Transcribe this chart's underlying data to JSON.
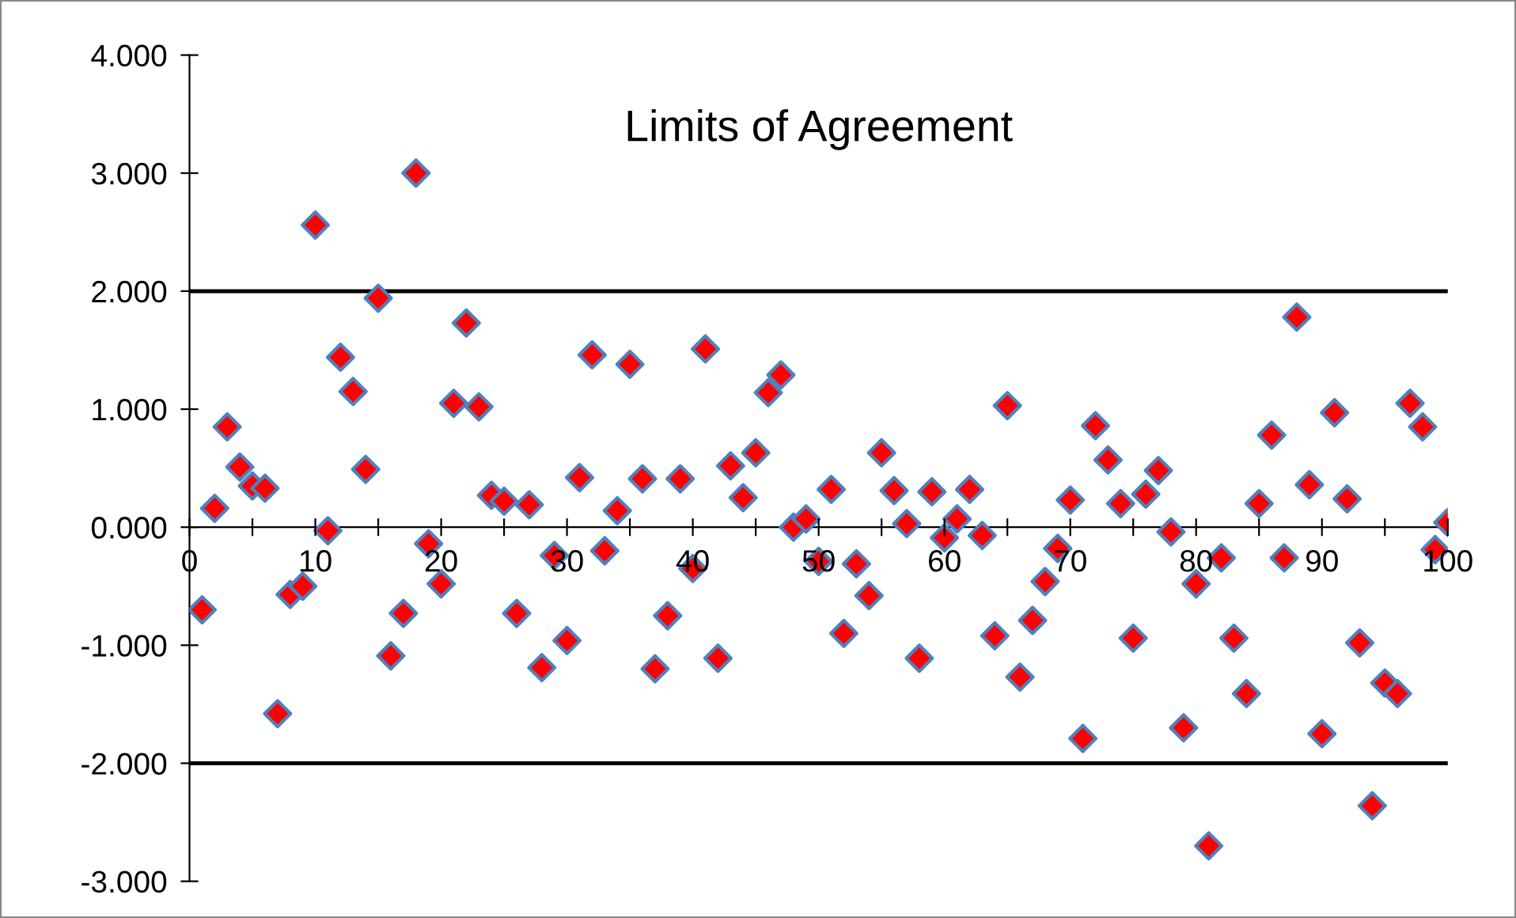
{
  "chart_data": {
    "type": "scatter",
    "title": "Limits of Agreement",
    "x": [
      1,
      2,
      3,
      4,
      5,
      6,
      7,
      8,
      9,
      10,
      11,
      12,
      13,
      14,
      15,
      16,
      17,
      18,
      19,
      20,
      21,
      22,
      23,
      24,
      25,
      26,
      27,
      28,
      29,
      30,
      31,
      32,
      33,
      34,
      35,
      36,
      37,
      38,
      39,
      40,
      41,
      42,
      43,
      44,
      45,
      46,
      47,
      48,
      49,
      50,
      51,
      52,
      53,
      54,
      55,
      56,
      57,
      58,
      59,
      60,
      61,
      62,
      63,
      64,
      65,
      66,
      67,
      68,
      69,
      70,
      71,
      72,
      73,
      74,
      75,
      76,
      77,
      78,
      79,
      80,
      81,
      82,
      83,
      84,
      85,
      86,
      87,
      88,
      89,
      90,
      91,
      92,
      93,
      94,
      95,
      96,
      97,
      98,
      99,
      100
    ],
    "series": [
      {
        "color": "#ff0000",
        "values": [
          -0.7,
          0.16,
          0.85,
          0.51,
          0.35,
          0.33,
          -1.58,
          -0.57,
          -0.5,
          2.56,
          -0.03,
          1.44,
          1.15,
          0.49,
          1.94,
          -1.09,
          -0.73,
          3.0,
          -0.14,
          -0.48,
          1.05,
          1.73,
          1.02,
          0.27,
          0.22,
          -0.73,
          0.19,
          -1.19,
          -0.24,
          -0.96,
          0.42,
          1.46,
          -0.2,
          0.14,
          1.38,
          0.41,
          -1.2,
          -0.75,
          0.41,
          -0.35,
          1.51,
          -1.11,
          0.52,
          0.25,
          0.63,
          1.14,
          1.29,
          0.0,
          0.07,
          -0.29,
          0.32,
          -0.9,
          -0.31,
          -0.58,
          0.63,
          0.31,
          0.03,
          -1.11,
          0.3,
          -0.09,
          0.07,
          0.32,
          -0.07,
          -0.92,
          1.03,
          -1.27,
          -0.79,
          -0.46,
          -0.18,
          0.23,
          -1.79,
          0.86,
          0.57,
          0.2,
          -0.94,
          0.28,
          0.48,
          -0.04,
          -1.7,
          -0.48,
          -2.7,
          -0.26,
          -0.94,
          -1.41,
          0.2,
          0.78,
          -0.26,
          1.78,
          0.36,
          -1.75,
          0.97,
          0.24,
          -0.98,
          -2.36,
          -1.32,
          -1.41,
          1.05,
          0.85,
          -0.19,
          0.04
        ]
      }
    ],
    "marker": "diamond",
    "grid": false,
    "legend": false,
    "xlim": [
      0,
      100
    ],
    "xticks": [
      0,
      {
        "value": 5,
        "label": null
      },
      10,
      {
        "value": 15,
        "label": null
      },
      20,
      {
        "value": 25,
        "label": null
      },
      30,
      {
        "value": 35,
        "label": null
      },
      40,
      {
        "value": 45,
        "label": null
      },
      50,
      {
        "value": 55,
        "label": null
      },
      60,
      {
        "value": 65,
        "label": null
      },
      70,
      {
        "value": 75,
        "label": null
      },
      80,
      {
        "value": 85,
        "label": null
      },
      90,
      {
        "value": 95,
        "label": null
      },
      100
    ],
    "ylim": [
      -3,
      4
    ],
    "yticks": [
      {
        "value": -3,
        "label": "-3.000"
      },
      {
        "value": -2,
        "label": "-2.000"
      },
      {
        "value": -1,
        "label": "-1.000"
      },
      {
        "value": 0,
        "label": "0.000"
      },
      {
        "value": 1,
        "label": "1.000"
      },
      {
        "value": 2,
        "label": "2.000"
      },
      {
        "value": 3,
        "label": "3.000"
      },
      {
        "value": 4,
        "label": "4.000"
      }
    ],
    "ref_lines": [
      {
        "axis": "y",
        "value": 2,
        "color": "#000000"
      },
      {
        "axis": "y",
        "value": -2,
        "color": "#000000"
      }
    ]
  }
}
